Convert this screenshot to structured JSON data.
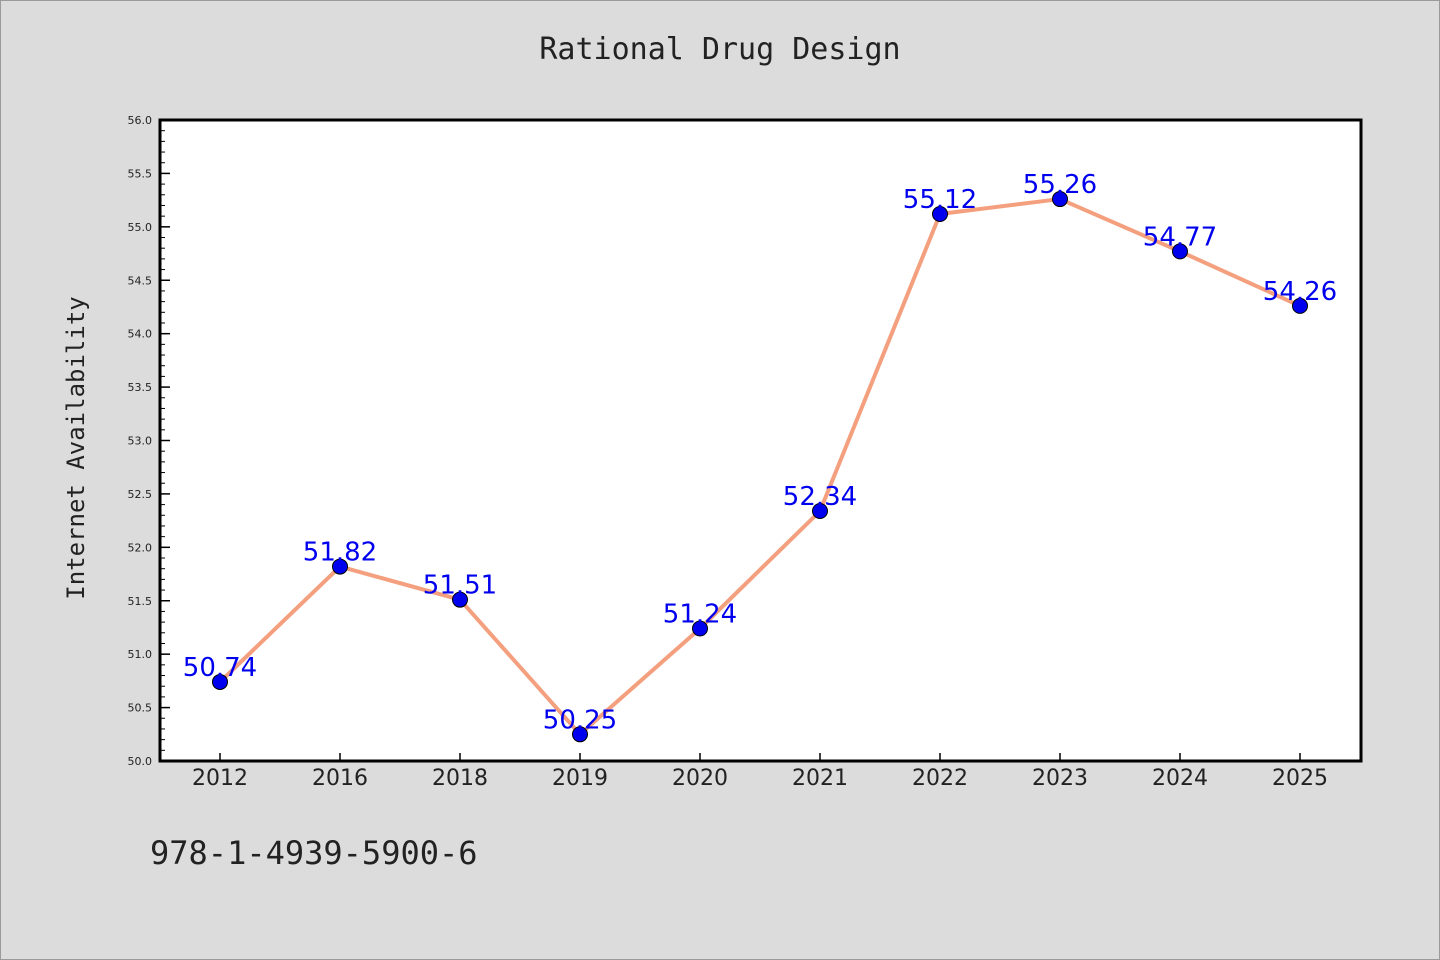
{
  "chart_data": {
    "type": "line",
    "title": "Rational Drug Design",
    "xlabel": "",
    "ylabel": "Internet Availability",
    "categories": [
      "2012",
      "2016",
      "2018",
      "2019",
      "2020",
      "2021",
      "2022",
      "2023",
      "2024",
      "2025"
    ],
    "series": [
      {
        "values": [
          50.74,
          51.82,
          51.51,
          50.25,
          51.24,
          52.34,
          55.12,
          55.26,
          54.77,
          54.26
        ],
        "line_color": "#f4a07f",
        "marker_color": "#0000ee"
      }
    ],
    "data_labels": [
      "50.74",
      "51.82",
      "51.51",
      "50.25",
      "51.24",
      "52.34",
      "55.12",
      "55.26",
      "54.77",
      "54.26"
    ],
    "ylim": [
      50.0,
      56.0
    ],
    "yticks": [
      "50.0",
      "50.5",
      "51.0",
      "51.5",
      "52.0",
      "52.5",
      "53.0",
      "53.5",
      "54.0",
      "54.5",
      "55.0",
      "55.5",
      "56.0"
    ],
    "grid": false,
    "legend": "none"
  },
  "footer": {
    "isbn": "978-1-4939-5900-6"
  },
  "colors": {
    "background": "#dcdcdc",
    "plot_background": "#ffffff",
    "line": "#f4a07f",
    "marker": "#0000ee",
    "data_label": "#0000ee"
  }
}
